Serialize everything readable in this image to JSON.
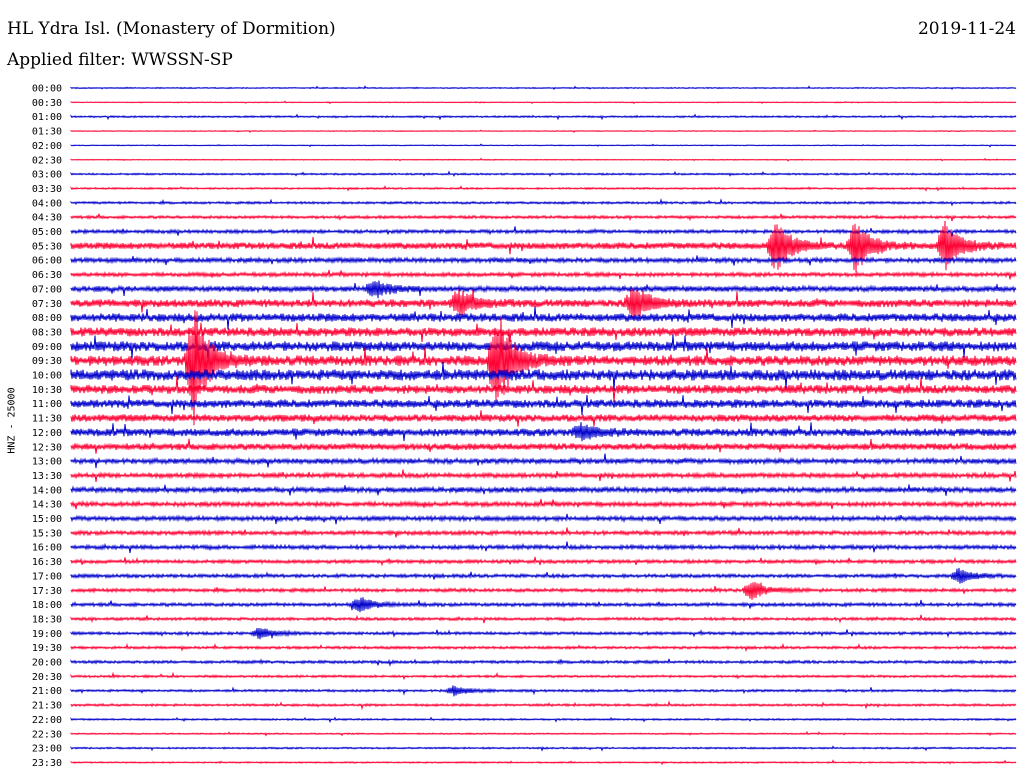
{
  "header": {
    "station": "HL Ydra Isl. (Monastery of Dormition)",
    "date": "2019-11-24",
    "filter": "Applied filter: WWSSN-SP",
    "channel_label": "HNZ - 25000"
  },
  "colors": {
    "trace_a": "#0000cc",
    "trace_b": "#ff0033"
  },
  "chart_data": {
    "type": "line",
    "title": "HL Ydra Isl. (Monastery of Dormition)",
    "ylabel": "HNZ - 25000",
    "row_labels": [
      "00:00",
      "00:30",
      "01:00",
      "01:30",
      "02:00",
      "02:30",
      "03:00",
      "03:30",
      "04:00",
      "04:30",
      "05:00",
      "05:30",
      "06:00",
      "06:30",
      "07:00",
      "07:30",
      "08:00",
      "08:30",
      "09:00",
      "09:30",
      "10:00",
      "10:30",
      "11:00",
      "11:30",
      "12:00",
      "12:30",
      "13:00",
      "13:30",
      "14:00",
      "14:30",
      "15:00",
      "15:30",
      "16:00",
      "16:30",
      "17:00",
      "17:30",
      "18:00",
      "18:30",
      "19:00",
      "19:30",
      "20:00",
      "20:30",
      "21:00",
      "21:30",
      "22:00",
      "22:30",
      "23:00",
      "23:30"
    ],
    "noise_level": [
      0.4,
      0.3,
      0.6,
      0.3,
      0.3,
      0.3,
      0.6,
      0.6,
      0.8,
      1.0,
      1.2,
      2.4,
      1.6,
      1.4,
      2.0,
      2.8,
      3.0,
      3.2,
      3.6,
      3.8,
      4.0,
      3.2,
      3.0,
      2.6,
      2.8,
      2.4,
      1.8,
      1.6,
      1.8,
      1.6,
      1.6,
      1.4,
      1.4,
      1.2,
      1.2,
      1.2,
      1.2,
      1.0,
      1.0,
      0.9,
      1.0,
      0.8,
      0.8,
      0.8,
      0.6,
      0.5,
      0.6,
      0.5
    ],
    "events": [
      {
        "row": 19,
        "x": 0.13,
        "amp": 60
      },
      {
        "row": 19,
        "x": 0.45,
        "amp": 55
      },
      {
        "row": 11,
        "x": 0.745,
        "amp": 30
      },
      {
        "row": 11,
        "x": 0.83,
        "amp": 28
      },
      {
        "row": 11,
        "x": 0.925,
        "amp": 26
      },
      {
        "row": 15,
        "x": 0.41,
        "amp": 14
      },
      {
        "row": 15,
        "x": 0.595,
        "amp": 18
      },
      {
        "row": 14,
        "x": 0.32,
        "amp": 10
      },
      {
        "row": 24,
        "x": 0.54,
        "amp": 8
      },
      {
        "row": 34,
        "x": 0.94,
        "amp": 8
      },
      {
        "row": 35,
        "x": 0.72,
        "amp": 10
      },
      {
        "row": 36,
        "x": 0.305,
        "amp": 8
      },
      {
        "row": 38,
        "x": 0.2,
        "amp": 6
      },
      {
        "row": 42,
        "x": 0.405,
        "amp": 5
      }
    ]
  }
}
